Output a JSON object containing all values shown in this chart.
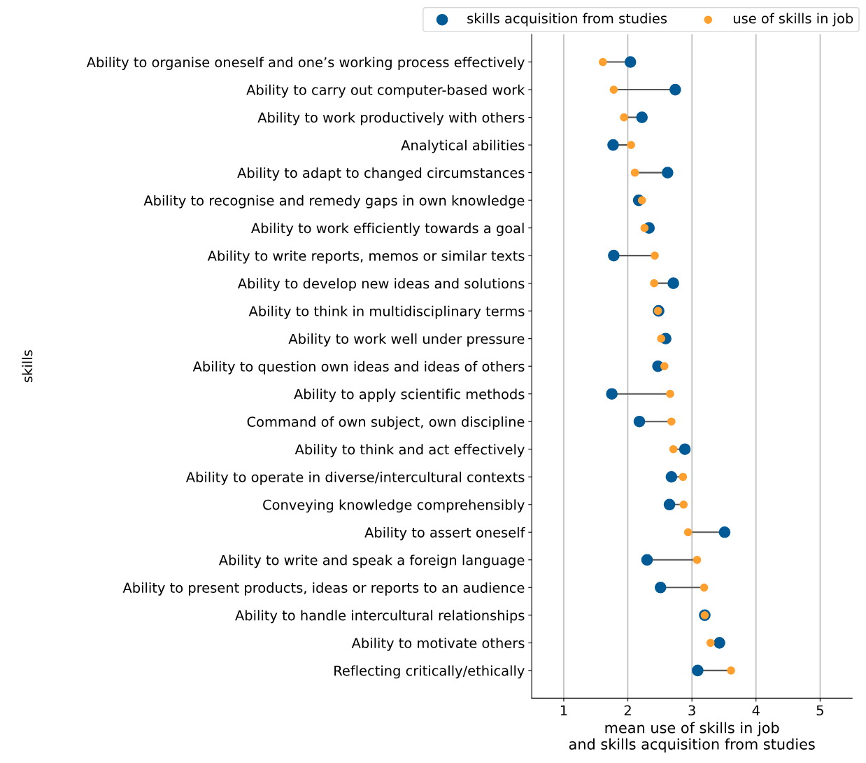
{
  "chart_data": {
    "type": "scatter",
    "orientation": "horizontal",
    "xlabel": "mean use of skills in job\nand skills acquisition from studies",
    "ylabel": "skills",
    "categories": [
      "Ability to organise oneself and one’s working process effectively",
      "Ability to carry out computer-based work",
      "Ability to work productively with others",
      "Analytical abilities",
      "Ability to adapt to changed circumstances",
      "Ability to recognise and remedy gaps in own knowledge",
      "Ability to work efficiently towards a goal",
      "Ability to write reports, memos or similar texts",
      "Ability to develop new ideas and solutions",
      "Ability to think in multidisciplinary terms",
      "Ability to work well under pressure",
      "Ability to question own ideas and ideas of others",
      "Ability to apply scientific methods",
      "Command of own subject, own discipline",
      "Ability to think and act effectively",
      "Ability to operate in diverse/intercultural contexts",
      "Conveying knowledge comprehensibly",
      "Ability to assert oneself",
      "Ability to write and speak a foreign language",
      "Ability to present products, ideas or reports to an audience",
      "Ability to handle intercultural relationships",
      "Ability to motivate others",
      "Reflecting critically/ethically"
    ],
    "series": [
      {
        "name": "skills acquisition from studies",
        "color": "#005a96",
        "values": [
          2.04,
          2.74,
          2.22,
          1.77,
          2.62,
          2.17,
          2.33,
          1.78,
          2.71,
          2.48,
          2.59,
          2.47,
          1.75,
          2.18,
          2.89,
          2.68,
          2.65,
          3.51,
          2.3,
          2.51,
          3.2,
          3.43,
          3.09
        ]
      },
      {
        "name": "use of skills in job",
        "color": "#ff9f2e",
        "values": [
          1.61,
          1.78,
          1.94,
          2.05,
          2.11,
          2.22,
          2.26,
          2.42,
          2.41,
          2.47,
          2.52,
          2.57,
          2.66,
          2.68,
          2.71,
          2.86,
          2.87,
          2.94,
          3.08,
          3.19,
          3.2,
          3.29,
          3.61
        ]
      }
    ],
    "xlim": [
      0.5,
      5.5
    ],
    "xticks": [
      1,
      2,
      3,
      4,
      5
    ],
    "grid": "x",
    "legend": "top",
    "marker": "circle"
  }
}
